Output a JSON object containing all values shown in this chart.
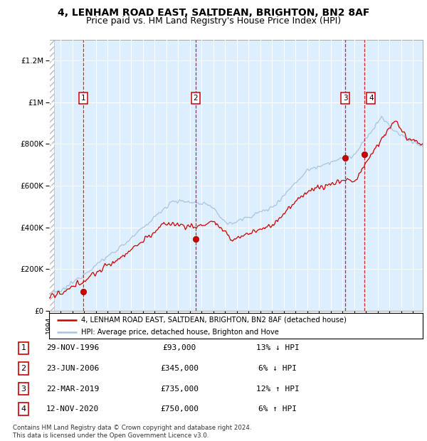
{
  "title1": "4, LENHAM ROAD EAST, SALTDEAN, BRIGHTON, BN2 8AF",
  "title2": "Price paid vs. HM Land Registry's House Price Index (HPI)",
  "ylim": [
    0,
    1300000
  ],
  "xlim_start": 1994.0,
  "xlim_end": 2025.83,
  "yticks": [
    0,
    200000,
    400000,
    600000,
    800000,
    1000000,
    1200000
  ],
  "ytick_labels": [
    "£0",
    "£200K",
    "£400K",
    "£600K",
    "£800K",
    "£1M",
    "£1.2M"
  ],
  "sale_dates": [
    1996.91,
    2006.48,
    2019.22,
    2020.87
  ],
  "sale_prices": [
    93000,
    345000,
    735000,
    750000
  ],
  "sale_labels": [
    "1",
    "2",
    "3",
    "4"
  ],
  "line_color_property": "#cc0000",
  "line_color_hpi": "#aac4e0",
  "plot_bg_color": "#ddeeff",
  "grid_color": "#ffffff",
  "legend_label_property": "4, LENHAM ROAD EAST, SALTDEAN, BRIGHTON, BN2 8AF (detached house)",
  "legend_label_hpi": "HPI: Average price, detached house, Brighton and Hove",
  "table_rows": [
    [
      "1",
      "29-NOV-1996",
      "£93,000",
      "13% ↓ HPI"
    ],
    [
      "2",
      "23-JUN-2006",
      "£345,000",
      "6% ↓ HPI"
    ],
    [
      "3",
      "22-MAR-2019",
      "£735,000",
      "12% ↑ HPI"
    ],
    [
      "4",
      "12-NOV-2020",
      "£750,000",
      "6% ↑ HPI"
    ]
  ],
  "footnote": "Contains HM Land Registry data © Crown copyright and database right 2024.\nThis data is licensed under the Open Government Licence v3.0.",
  "title_fontsize": 10,
  "subtitle_fontsize": 9
}
